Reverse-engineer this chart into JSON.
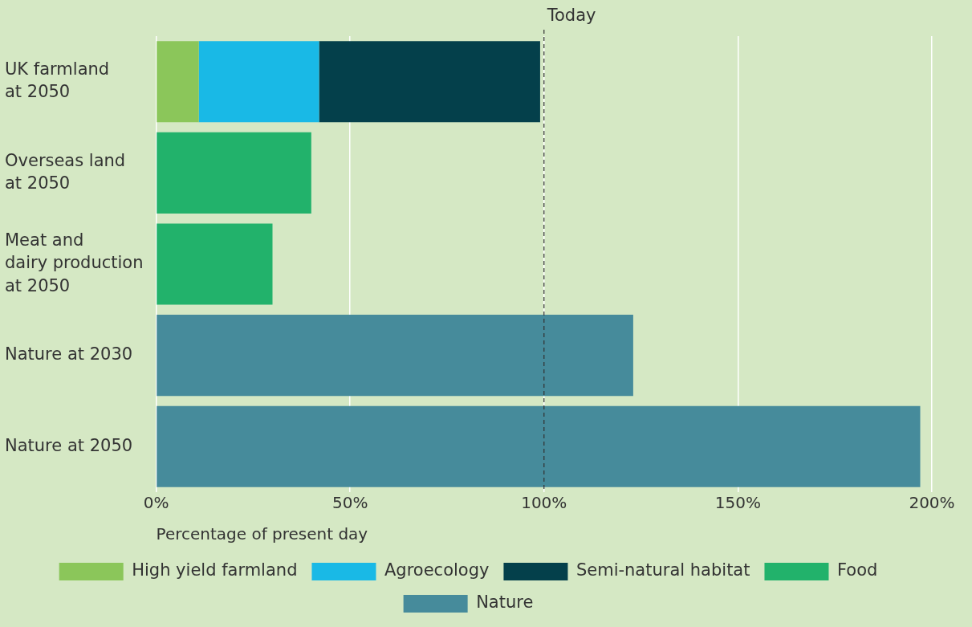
{
  "chart_data": {
    "type": "bar",
    "orientation": "horizontal",
    "stacked": true,
    "categories": [
      "UK farmland\nat 2050",
      "Overseas land\nat 2050",
      "Meat and\ndairy production\nat 2050",
      "Nature at 2030",
      "Nature at 2050"
    ],
    "series": [
      {
        "name": "High yield farmland",
        "color": "#8bc65a",
        "values": [
          11,
          null,
          null,
          null,
          null
        ]
      },
      {
        "name": "Agroecology",
        "color": "#19b9e6",
        "values": [
          31,
          null,
          null,
          null,
          null
        ]
      },
      {
        "name": "Semi-natural habitat",
        "color": "#04404b",
        "values": [
          57,
          null,
          null,
          null,
          null
        ]
      },
      {
        "name": "Food",
        "color": "#22b26b",
        "values": [
          null,
          40,
          30,
          null,
          null
        ]
      },
      {
        "name": "Nature",
        "color": "#468b9b",
        "values": [
          null,
          null,
          null,
          123,
          197
        ]
      }
    ],
    "xlim": [
      0,
      200
    ],
    "xticks": [
      {
        "value": 0,
        "label": "0%"
      },
      {
        "value": 50,
        "label": "50%"
      },
      {
        "value": 100,
        "label": "100%"
      },
      {
        "value": 150,
        "label": "150%"
      },
      {
        "value": 200,
        "label": "200%"
      }
    ],
    "xlabel": "Percentage of present day",
    "ref_lines": [
      {
        "axis": "x",
        "value": 100,
        "label": "Today",
        "color": "#333333",
        "line_style": "dashed"
      }
    ],
    "grid": "x",
    "legend": "bottom"
  }
}
